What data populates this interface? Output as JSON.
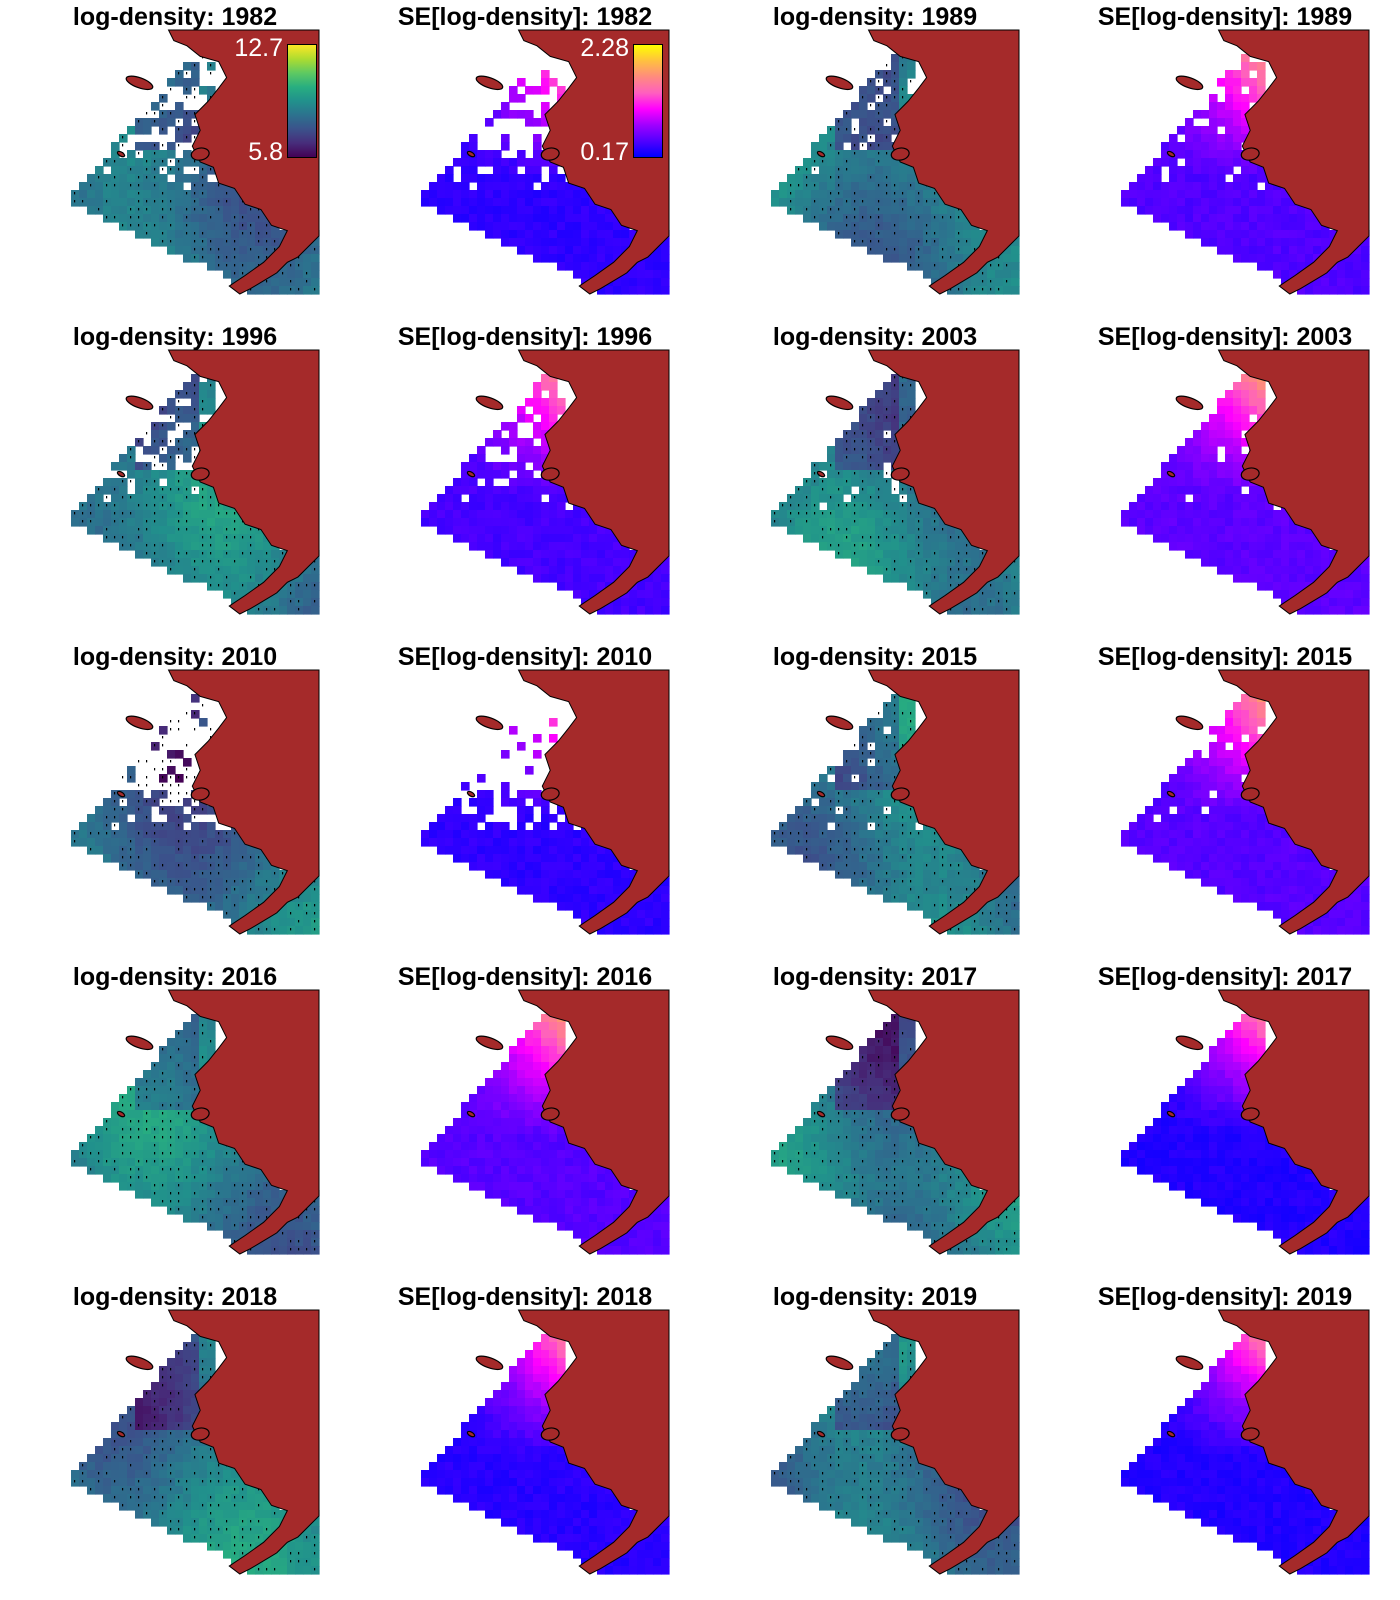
{
  "figure": {
    "colors": {
      "land": "#A52A2A",
      "coast": "#000000",
      "background": "#ffffff",
      "stations": "#000000"
    },
    "scales": {
      "viridis": [
        "#440154",
        "#472d7b",
        "#3b528b",
        "#2c728e",
        "#21918c",
        "#28ae80",
        "#5ec962",
        "#addc30",
        "#fde725"
      ],
      "plasma_se": [
        "#0000ff",
        "#5200ff",
        "#a000ff",
        "#ff00ff",
        "#ff5fbf",
        "#ff8a7f",
        "#ffc040",
        "#ffff00"
      ]
    },
    "legends": {
      "log_density": {
        "max_label": "12.7",
        "min_label": "5.8"
      },
      "se": {
        "max_label": "2.28",
        "min_label": "0.17"
      }
    },
    "panels": [
      {
        "title": "log-density: 1982",
        "kind": "density",
        "year": "1982",
        "level": 0.42,
        "legend": "log_density",
        "ice_north": 0.55,
        "ice_mid": 0.15
      },
      {
        "title": "SE[log-density]: 1982",
        "kind": "se",
        "year": "1982",
        "level": 0.08,
        "legend": "se",
        "ice_north": 0.55,
        "ice_mid": 0.15
      },
      {
        "title": "log-density: 1989",
        "kind": "density",
        "year": "1989",
        "level": 0.45,
        "ice_north": 0.25,
        "ice_mid": 0.05
      },
      {
        "title": "SE[log-density]: 1989",
        "kind": "se",
        "year": "1989",
        "level": 0.14,
        "ice_north": 0.22,
        "ice_mid": 0.05
      },
      {
        "title": "log-density: 1996",
        "kind": "density",
        "year": "1996",
        "level": 0.4,
        "ice_north": 0.35,
        "ice_mid": 0.1
      },
      {
        "title": "SE[log-density]: 1996",
        "kind": "se",
        "year": "1996",
        "level": 0.12,
        "ice_north": 0.35,
        "ice_mid": 0.1
      },
      {
        "title": "log-density: 2003",
        "kind": "density",
        "year": "2003",
        "level": 0.4,
        "ice_north": 0.05,
        "ice_mid": 0.1
      },
      {
        "title": "SE[log-density]: 2003",
        "kind": "se",
        "year": "2003",
        "level": 0.16,
        "ice_north": 0.05,
        "ice_mid": 0.1
      },
      {
        "title": "log-density: 2010",
        "kind": "density",
        "year": "2010",
        "level": 0.38,
        "ice_north": 0.85,
        "ice_mid": 0.35
      },
      {
        "title": "SE[log-density]: 2010",
        "kind": "se",
        "year": "2010",
        "level": 0.08,
        "ice_north": 0.85,
        "ice_mid": 0.35
      },
      {
        "title": "log-density: 2015",
        "kind": "density",
        "year": "2015",
        "level": 0.44,
        "ice_north": 0.08,
        "ice_mid": 0.05
      },
      {
        "title": "SE[log-density]: 2015",
        "kind": "se",
        "year": "2015",
        "level": 0.15,
        "ice_north": 0.08,
        "ice_mid": 0.05
      },
      {
        "title": "log-density: 2016",
        "kind": "density",
        "year": "2016",
        "level": 0.42,
        "ice_north": 0.0,
        "ice_mid": 0.0
      },
      {
        "title": "SE[log-density]: 2016",
        "kind": "se",
        "year": "2016",
        "level": 0.15,
        "ice_north": 0.0,
        "ice_mid": 0.0
      },
      {
        "title": "log-density: 2017",
        "kind": "density",
        "year": "2017",
        "level": 0.4,
        "ice_north": 0.0,
        "ice_mid": 0.0
      },
      {
        "title": "SE[log-density]: 2017",
        "kind": "se",
        "year": "2017",
        "level": 0.06,
        "ice_north": 0.0,
        "ice_mid": 0.0
      },
      {
        "title": "log-density: 2018",
        "kind": "density",
        "year": "2018",
        "level": 0.42,
        "ice_north": 0.0,
        "ice_mid": 0.0
      },
      {
        "title": "SE[log-density]: 2018",
        "kind": "se",
        "year": "2018",
        "level": 0.07,
        "ice_north": 0.0,
        "ice_mid": 0.0
      },
      {
        "title": "log-density: 2019",
        "kind": "density",
        "year": "2019",
        "level": 0.4,
        "ice_north": 0.0,
        "ice_mid": 0.0
      },
      {
        "title": "SE[log-density]: 2019",
        "kind": "se",
        "year": "2019",
        "level": 0.06,
        "ice_north": 0.0,
        "ice_mid": 0.0
      }
    ]
  }
}
